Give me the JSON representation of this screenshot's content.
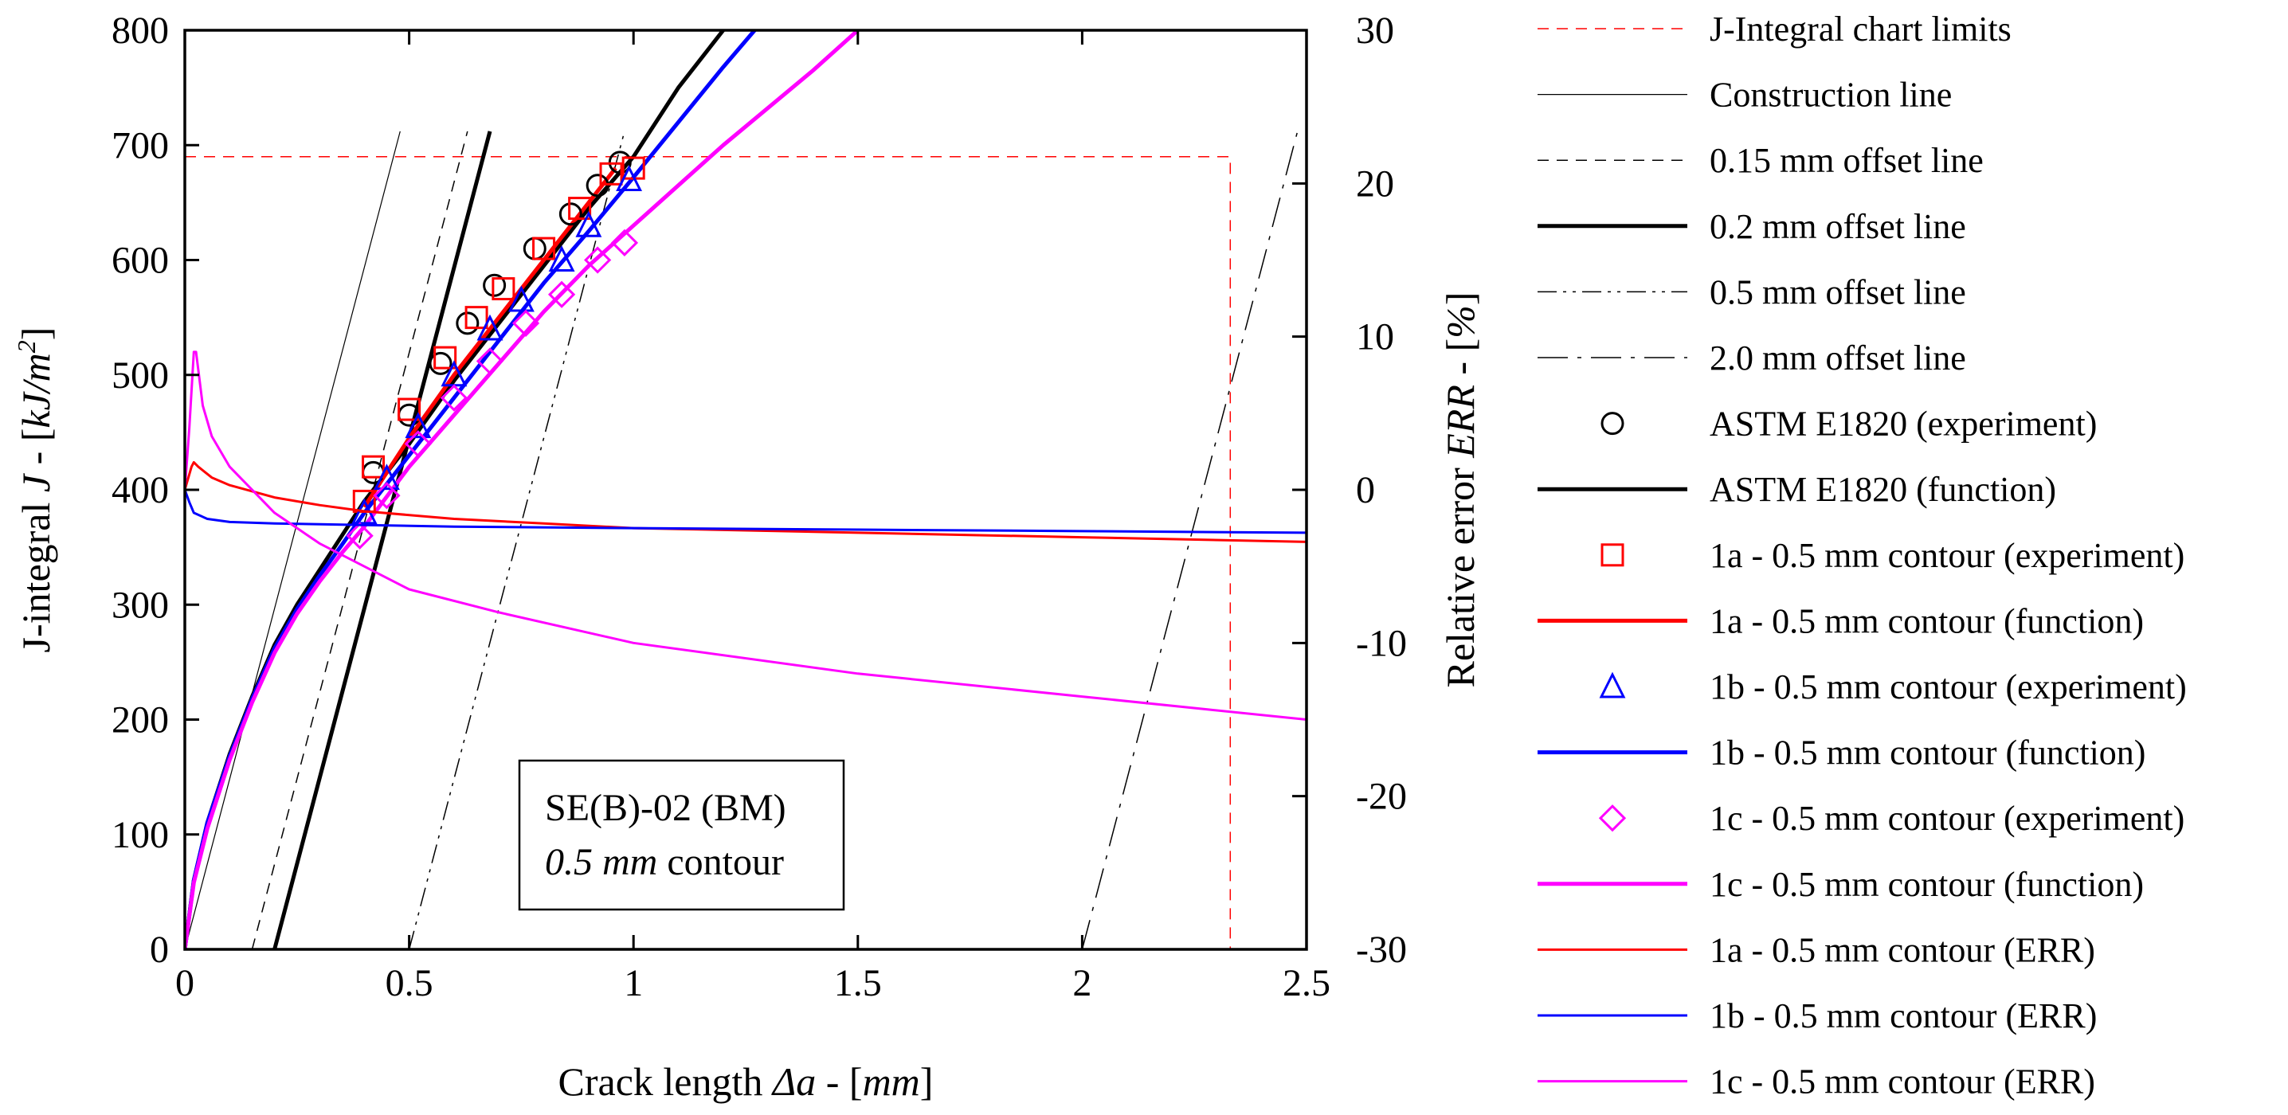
{
  "chart_data": {
    "type": "line",
    "xlabel": "Crack length Δa - [mm]",
    "ylabel": "J-integral J - [kJ/m²]",
    "y2label": "Relative error ERR - [%]",
    "xlim": [
      0,
      2.5
    ],
    "ylim": [
      0,
      800
    ],
    "y2lim": [
      -30,
      30
    ],
    "x_ticks": [
      0,
      0.5,
      1,
      1.5,
      2,
      2.5
    ],
    "x_tick_labels": [
      "0",
      "0.5",
      "1",
      "1.5",
      "2",
      "2.5"
    ],
    "y_ticks": [
      0,
      100,
      200,
      300,
      400,
      500,
      600,
      700,
      800
    ],
    "y_tick_labels": [
      "0",
      "100",
      "200",
      "300",
      "400",
      "500",
      "600",
      "700",
      "800"
    ],
    "y2_ticks": [
      -30,
      -20,
      -10,
      0,
      10,
      20,
      30
    ],
    "y2_tick_labels": [
      "-30",
      "-20",
      "-10",
      "0",
      "10",
      "20",
      "30"
    ],
    "annotation": {
      "line1": "SE(B)-02 (BM)",
      "line2_italic": "0.5 mm",
      "line2_rest": " contour"
    },
    "legend_position": "right",
    "legend": [
      {
        "label": "J-Integral chart limits",
        "kind": "line",
        "color": "#ff0000",
        "width": 1.5,
        "dash": "dash"
      },
      {
        "label": "Construction line",
        "kind": "line",
        "color": "#000000",
        "width": 1.2,
        "dash": "solid"
      },
      {
        "label": "0.15 mm offset line",
        "kind": "line",
        "color": "#000000",
        "width": 1.5,
        "dash": "dash"
      },
      {
        "label": "0.2 mm offset line",
        "kind": "line",
        "color": "#000000",
        "width": 5,
        "dash": "solid"
      },
      {
        "label": "0.5 mm offset line",
        "kind": "line",
        "color": "#000000",
        "width": 1.5,
        "dash": "dashdotdot"
      },
      {
        "label": "2.0 mm offset line",
        "kind": "line",
        "color": "#000000",
        "width": 1.5,
        "dash": "longdashdot"
      },
      {
        "label": "ASTM E1820 (experiment)",
        "kind": "marker",
        "color": "#000000",
        "marker": "circle"
      },
      {
        "label": "ASTM E1820 (function)",
        "kind": "line",
        "color": "#000000",
        "width": 5,
        "dash": "solid"
      },
      {
        "label": "1a - 0.5 mm contour (experiment)",
        "kind": "marker",
        "color": "#ff0000",
        "marker": "square"
      },
      {
        "label": "1a - 0.5 mm contour (function)",
        "kind": "line",
        "color": "#ff0000",
        "width": 5,
        "dash": "solid"
      },
      {
        "label": "1b - 0.5 mm contour (experiment)",
        "kind": "marker",
        "color": "#0000ff",
        "marker": "triangle"
      },
      {
        "label": "1b - 0.5 mm contour (function)",
        "kind": "line",
        "color": "#0000ff",
        "width": 5,
        "dash": "solid"
      },
      {
        "label": "1c - 0.5 mm contour (experiment)",
        "kind": "marker",
        "color": "#ff00ff",
        "marker": "diamond"
      },
      {
        "label": "1c - 0.5 mm contour (function)",
        "kind": "line",
        "color": "#ff00ff",
        "width": 5,
        "dash": "solid"
      },
      {
        "label": "1a - 0.5 mm contour (ERR)",
        "kind": "line",
        "color": "#ff0000",
        "width": 3,
        "dash": "solid"
      },
      {
        "label": "1b - 0.5 mm contour (ERR)",
        "kind": "line",
        "color": "#0000ff",
        "width": 3,
        "dash": "solid"
      },
      {
        "label": "1c - 0.5 mm contour (ERR)",
        "kind": "line",
        "color": "#ff00ff",
        "width": 3,
        "dash": "solid"
      }
    ],
    "reference_lines": [
      {
        "name": "chart-limits",
        "color": "#ff0000",
        "width": 1.5,
        "dash": "dash",
        "points": [
          [
            0,
            690
          ],
          [
            2.33,
            690
          ],
          [
            2.33,
            0
          ]
        ]
      },
      {
        "name": "construction-line",
        "color": "#000000",
        "width": 1.2,
        "dash": "solid",
        "points": [
          [
            0,
            0
          ],
          [
            0.48,
            712
          ]
        ]
      },
      {
        "name": "offset-0.15",
        "color": "#000000",
        "width": 1.5,
        "dash": "dash",
        "points": [
          [
            0.15,
            0
          ],
          [
            0.63,
            712
          ]
        ]
      },
      {
        "name": "offset-0.2",
        "color": "#000000",
        "width": 5,
        "dash": "solid",
        "points": [
          [
            0.2,
            0
          ],
          [
            0.68,
            712
          ]
        ]
      },
      {
        "name": "offset-0.5",
        "color": "#000000",
        "width": 1.5,
        "dash": "dashdotdot",
        "points": [
          [
            0.5,
            0
          ],
          [
            0.98,
            712
          ]
        ]
      },
      {
        "name": "offset-2.0",
        "color": "#000000",
        "width": 1.5,
        "dash": "longdashdot",
        "points": [
          [
            2.0,
            0
          ],
          [
            2.48,
            712
          ]
        ]
      }
    ],
    "function_series": [
      {
        "name": "ASTM E1820 (function)",
        "color": "#000000",
        "width": 5,
        "x": [
          0,
          0.02,
          0.05,
          0.1,
          0.15,
          0.2,
          0.25,
          0.3,
          0.35,
          0.4,
          0.5,
          0.6,
          0.7,
          0.8,
          0.9,
          1.0,
          1.1,
          1.2
        ],
        "y": [
          0,
          60,
          110,
          170,
          220,
          265,
          300,
          330,
          360,
          390,
          440,
          495,
          545,
          595,
          645,
          690,
          750,
          800
        ]
      },
      {
        "name": "1a - 0.5 mm contour (function)",
        "color": "#ff0000",
        "width": 5,
        "x": [
          0.4,
          0.5,
          0.6,
          0.7,
          0.8,
          0.9,
          0.96
        ],
        "y": [
          385,
          445,
          500,
          550,
          600,
          650,
          680
        ]
      },
      {
        "name": "1b - 0.5 mm contour (function)",
        "color": "#0000ff",
        "width": 5,
        "x": [
          0,
          0.02,
          0.05,
          0.1,
          0.15,
          0.2,
          0.25,
          0.3,
          0.35,
          0.4,
          0.5,
          0.6,
          0.7,
          0.8,
          0.9,
          1.0,
          1.1,
          1.2,
          1.27
        ],
        "y": [
          0,
          60,
          110,
          168,
          218,
          262,
          296,
          325,
          352,
          380,
          430,
          480,
          530,
          580,
          625,
          672,
          720,
          768,
          800
        ]
      },
      {
        "name": "1c - 0.5 mm contour (function)",
        "color": "#ff00ff",
        "width": 5,
        "x": [
          0,
          0.02,
          0.05,
          0.1,
          0.15,
          0.2,
          0.25,
          0.3,
          0.35,
          0.4,
          0.5,
          0.6,
          0.7,
          0.8,
          0.9,
          1.0,
          1.2,
          1.4,
          1.5
        ],
        "y": [
          0,
          58,
          105,
          165,
          215,
          258,
          292,
          320,
          345,
          368,
          420,
          465,
          510,
          555,
          595,
          630,
          700,
          765,
          800
        ]
      }
    ],
    "experiment_series": [
      {
        "name": "ASTM E1820 (experiment)",
        "marker": "circle",
        "color": "#000000",
        "x": [
          0.42,
          0.5,
          0.57,
          0.63,
          0.69,
          0.78,
          0.86,
          0.92,
          0.97
        ],
        "y": [
          415,
          465,
          510,
          545,
          578,
          610,
          640,
          665,
          685
        ]
      },
      {
        "name": "1a - 0.5 mm contour (experiment)",
        "marker": "square",
        "color": "#ff0000",
        "x": [
          0.4,
          0.42,
          0.5,
          0.58,
          0.65,
          0.71,
          0.8,
          0.88,
          0.95,
          1.0
        ],
        "y": [
          390,
          420,
          470,
          515,
          550,
          575,
          610,
          645,
          675,
          680
        ]
      },
      {
        "name": "1b - 0.5 mm contour (experiment)",
        "marker": "triangle",
        "color": "#0000ff",
        "x": [
          0.4,
          0.45,
          0.52,
          0.6,
          0.68,
          0.75,
          0.84,
          0.9,
          0.99
        ],
        "y": [
          380,
          410,
          455,
          500,
          540,
          565,
          600,
          630,
          670
        ]
      },
      {
        "name": "1c - 0.5 mm contour (experiment)",
        "marker": "diamond",
        "color": "#ff00ff",
        "x": [
          0.39,
          0.45,
          0.52,
          0.6,
          0.68,
          0.76,
          0.84,
          0.92,
          0.98
        ],
        "y": [
          360,
          395,
          440,
          480,
          512,
          545,
          570,
          600,
          615
        ]
      }
    ],
    "err_series": [
      {
        "name": "1a - 0.5 mm contour (ERR)",
        "color": "#ff0000",
        "width": 3,
        "x": [
          0,
          0.015,
          0.02,
          0.03,
          0.06,
          0.1,
          0.2,
          0.3,
          0.4,
          0.6,
          0.8,
          1.0,
          1.5,
          2.0,
          2.5
        ],
        "y": [
          0,
          1.5,
          1.8,
          1.5,
          0.8,
          0.3,
          -0.5,
          -1.0,
          -1.4,
          -1.9,
          -2.2,
          -2.5,
          -2.8,
          -3.1,
          -3.4
        ]
      },
      {
        "name": "1b - 0.5 mm contour (ERR)",
        "color": "#0000ff",
        "width": 3,
        "x": [
          0,
          0.01,
          0.02,
          0.05,
          0.1,
          0.2,
          0.4,
          0.6,
          1.0,
          1.5,
          2.0,
          2.5
        ],
        "y": [
          0,
          -0.8,
          -1.5,
          -1.9,
          -2.1,
          -2.2,
          -2.3,
          -2.4,
          -2.5,
          -2.6,
          -2.7,
          -2.8
        ]
      },
      {
        "name": "1c - 0.5 mm contour (ERR)",
        "color": "#ff00ff",
        "width": 3,
        "x": [
          0,
          0.01,
          0.02,
          0.025,
          0.04,
          0.06,
          0.1,
          0.2,
          0.3,
          0.4,
          0.5,
          0.7,
          1.0,
          1.5,
          2.0,
          2.5
        ],
        "y": [
          0,
          4,
          9,
          9,
          5.5,
          3.5,
          1.5,
          -1.5,
          -3.5,
          -5.0,
          -6.5,
          -8.0,
          -10.0,
          -12.0,
          -13.5,
          -15.0
        ]
      }
    ]
  }
}
